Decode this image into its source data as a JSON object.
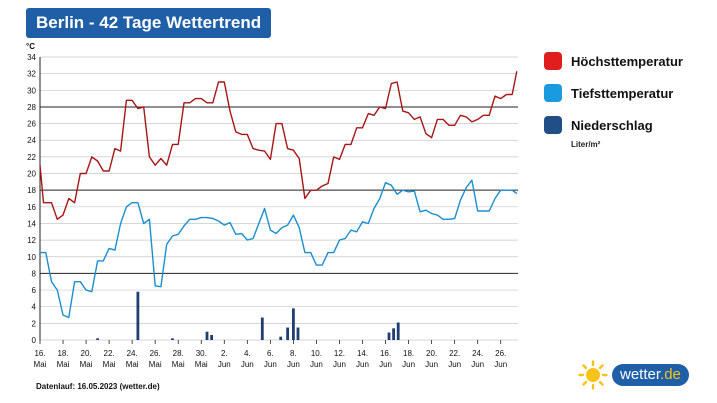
{
  "header": {
    "title": "Berlin - 42 Tage Wettertrend"
  },
  "footer": {
    "text": "Datenlauf: 16.05.2023 (wetter.de)"
  },
  "brand": {
    "name": "wetter",
    "tld": ".de",
    "icon": "sun-icon"
  },
  "legend": {
    "unit": "Liter/m²",
    "items": [
      {
        "label": "Höchsttemperatur",
        "color": "#e01e1e"
      },
      {
        "label": "Tiefsttemperatur",
        "color": "#1a9be0"
      },
      {
        "label": "Niederschlag",
        "color": "#1f4f86"
      }
    ]
  },
  "chart_data": {
    "type": "line",
    "ylabel": "°C",
    "ylim": [
      0,
      34
    ],
    "yticks": [
      0,
      2,
      4,
      6,
      8,
      10,
      12,
      14,
      16,
      18,
      20,
      22,
      24,
      26,
      28,
      30,
      32,
      34
    ],
    "xlim": [
      0,
      41.5
    ],
    "x_ticks": [
      {
        "x": 0,
        "day": "16.",
        "month": "Mai"
      },
      {
        "x": 2,
        "day": "18.",
        "month": "Mai"
      },
      {
        "x": 4,
        "day": "20.",
        "month": "Mai"
      },
      {
        "x": 6,
        "day": "22.",
        "month": "Mai"
      },
      {
        "x": 8,
        "day": "24.",
        "month": "Mai"
      },
      {
        "x": 10,
        "day": "26.",
        "month": "Mai"
      },
      {
        "x": 12,
        "day": "28.",
        "month": "Mai"
      },
      {
        "x": 14,
        "day": "30.",
        "month": "Mai"
      },
      {
        "x": 16,
        "day": "2.",
        "month": "Jun"
      },
      {
        "x": 18,
        "day": "4.",
        "month": "Jun"
      },
      {
        "x": 20,
        "day": "6.",
        "month": "Jun"
      },
      {
        "x": 22,
        "day": "8.",
        "month": "Jun"
      },
      {
        "x": 24,
        "day": "10.",
        "month": "Jun"
      },
      {
        "x": 26,
        "day": "12.",
        "month": "Jun"
      },
      {
        "x": 28,
        "day": "14.",
        "month": "Jun"
      },
      {
        "x": 30,
        "day": "16.",
        "month": "Jun"
      },
      {
        "x": 32,
        "day": "18.",
        "month": "Jun"
      },
      {
        "x": 34,
        "day": "20.",
        "month": "Jun"
      },
      {
        "x": 36,
        "day": "22.",
        "month": "Jun"
      },
      {
        "x": 38,
        "day": "24.",
        "month": "Jun"
      },
      {
        "x": 40,
        "day": "26.",
        "month": "Jun"
      }
    ],
    "series": [
      {
        "name": "Höchsttemperatur",
        "color": "#a81515",
        "points": [
          [
            0,
            21
          ],
          [
            0.3,
            16.5
          ],
          [
            1,
            16.5
          ],
          [
            1.5,
            14.5
          ],
          [
            2,
            15
          ],
          [
            2.5,
            17
          ],
          [
            3,
            16.5
          ],
          [
            3.5,
            20
          ],
          [
            4,
            20
          ],
          [
            4.5,
            22
          ],
          [
            5,
            21.5
          ],
          [
            5.5,
            20.3
          ],
          [
            6,
            20.3
          ],
          [
            6.5,
            23
          ],
          [
            7,
            22.7
          ],
          [
            7.5,
            28.8
          ],
          [
            8,
            28.8
          ],
          [
            8.5,
            27.8
          ],
          [
            9,
            28
          ],
          [
            9.5,
            22
          ],
          [
            10,
            21
          ],
          [
            10.5,
            21.8
          ],
          [
            11,
            21
          ],
          [
            11.5,
            23.5
          ],
          [
            12,
            23.5
          ],
          [
            12.5,
            28.5
          ],
          [
            13,
            28.5
          ],
          [
            13.5,
            29
          ],
          [
            14,
            29
          ],
          [
            14.5,
            28.5
          ],
          [
            15,
            28.5
          ],
          [
            15.5,
            31
          ],
          [
            16,
            31
          ],
          [
            16.5,
            27.5
          ],
          [
            17,
            25
          ],
          [
            17.5,
            24.7
          ],
          [
            18,
            24.7
          ],
          [
            18.5,
            23
          ],
          [
            19,
            22.8
          ],
          [
            19.5,
            22.7
          ],
          [
            20,
            21.7
          ],
          [
            20.5,
            26
          ],
          [
            21,
            26
          ],
          [
            21.5,
            23
          ],
          [
            22,
            22.8
          ],
          [
            22.5,
            21.8
          ],
          [
            23,
            17
          ],
          [
            23.5,
            18
          ],
          [
            24,
            18
          ],
          [
            24.5,
            18.5
          ],
          [
            25,
            18.8
          ],
          [
            25.5,
            22
          ],
          [
            26,
            21.7
          ],
          [
            26.5,
            23.5
          ],
          [
            27,
            23.5
          ],
          [
            27.5,
            25.5
          ],
          [
            28,
            25.5
          ],
          [
            28.5,
            27.2
          ],
          [
            29,
            27
          ],
          [
            29.5,
            28
          ],
          [
            30,
            27.8
          ],
          [
            30.5,
            30.8
          ],
          [
            31,
            31
          ],
          [
            31.5,
            27.5
          ],
          [
            32,
            27.3
          ],
          [
            32.5,
            26.5
          ],
          [
            33,
            26.8
          ],
          [
            33.5,
            24.8
          ],
          [
            34,
            24.3
          ],
          [
            34.5,
            26.5
          ],
          [
            35,
            26.5
          ],
          [
            35.5,
            25.8
          ],
          [
            36,
            25.8
          ],
          [
            36.5,
            27
          ],
          [
            37,
            26.8
          ],
          [
            37.5,
            26.2
          ],
          [
            38,
            26.5
          ],
          [
            38.5,
            27
          ],
          [
            39,
            27
          ],
          [
            39.5,
            29.3
          ],
          [
            40,
            29
          ],
          [
            40.5,
            29.5
          ],
          [
            41,
            29.5
          ],
          [
            41.4,
            32.3
          ]
        ]
      },
      {
        "name": "Tiefsttemperatur",
        "color": "#1a8ecf",
        "points": [
          [
            0,
            10.5
          ],
          [
            0.5,
            10.5
          ],
          [
            1,
            7
          ],
          [
            1.5,
            6
          ],
          [
            2,
            3
          ],
          [
            2.5,
            2.7
          ],
          [
            3,
            7
          ],
          [
            3.5,
            7
          ],
          [
            4,
            6
          ],
          [
            4.5,
            5.8
          ],
          [
            5,
            9.5
          ],
          [
            5.5,
            9.5
          ],
          [
            6,
            11
          ],
          [
            6.5,
            10.8
          ],
          [
            7,
            14
          ],
          [
            7.5,
            16
          ],
          [
            8,
            16.5
          ],
          [
            8.5,
            16.5
          ],
          [
            9,
            14
          ],
          [
            9.5,
            14.5
          ],
          [
            10,
            6.5
          ],
          [
            10.5,
            6.4
          ],
          [
            11,
            11.5
          ],
          [
            11.5,
            12.5
          ],
          [
            12,
            12.7
          ],
          [
            12.5,
            13.7
          ],
          [
            13,
            14.5
          ],
          [
            13.5,
            14.5
          ],
          [
            14,
            14.7
          ],
          [
            14.5,
            14.7
          ],
          [
            15,
            14.6
          ],
          [
            15.5,
            14.3
          ],
          [
            16,
            13.8
          ],
          [
            16.5,
            14.1
          ],
          [
            17,
            12.7
          ],
          [
            17.5,
            12.8
          ],
          [
            18,
            12
          ],
          [
            18.5,
            12.2
          ],
          [
            19,
            14
          ],
          [
            19.5,
            15.8
          ],
          [
            20,
            13.2
          ],
          [
            20.5,
            12.8
          ],
          [
            21,
            13.5
          ],
          [
            21.5,
            13.8
          ],
          [
            22,
            15
          ],
          [
            22.5,
            13.5
          ],
          [
            23,
            10.5
          ],
          [
            23.5,
            10.5
          ],
          [
            24,
            9
          ],
          [
            24.5,
            9
          ],
          [
            25,
            10.5
          ],
          [
            25.5,
            10.5
          ],
          [
            26,
            12
          ],
          [
            26.5,
            12.2
          ],
          [
            27,
            13.2
          ],
          [
            27.5,
            13
          ],
          [
            28,
            14.2
          ],
          [
            28.5,
            14
          ],
          [
            29,
            15.8
          ],
          [
            29.5,
            17
          ],
          [
            30,
            18.9
          ],
          [
            30.5,
            18.6
          ],
          [
            31,
            17.5
          ],
          [
            31.5,
            18
          ],
          [
            32,
            17.8
          ],
          [
            32.5,
            17.9
          ],
          [
            33,
            15.4
          ],
          [
            33.5,
            15.6
          ],
          [
            34,
            15.2
          ],
          [
            34.5,
            15
          ],
          [
            35,
            14.5
          ],
          [
            35.5,
            14.5
          ],
          [
            36,
            14.6
          ],
          [
            36.5,
            16.8
          ],
          [
            37,
            18.3
          ],
          [
            37.5,
            19.2
          ],
          [
            38,
            15.5
          ],
          [
            38.5,
            15.5
          ],
          [
            39,
            15.5
          ],
          [
            39.5,
            17
          ],
          [
            40,
            18
          ],
          [
            40.5,
            18
          ],
          [
            41,
            18
          ],
          [
            41.4,
            17.6
          ]
        ]
      }
    ],
    "bars": {
      "name": "Niederschlag",
      "color": "#1f3f73",
      "points": [
        [
          5,
          0.2
        ],
        [
          8.5,
          5.8
        ],
        [
          11.5,
          0.2
        ],
        [
          14.5,
          1
        ],
        [
          14.9,
          0.6
        ],
        [
          19.3,
          2.7
        ],
        [
          20.9,
          0.4
        ],
        [
          21.5,
          1.5
        ],
        [
          22.0,
          3.8
        ],
        [
          22.4,
          1.5
        ],
        [
          30.3,
          0.9
        ],
        [
          30.7,
          1.4
        ],
        [
          31.1,
          2.1
        ]
      ]
    },
    "legend_position": "right",
    "grid": true
  }
}
